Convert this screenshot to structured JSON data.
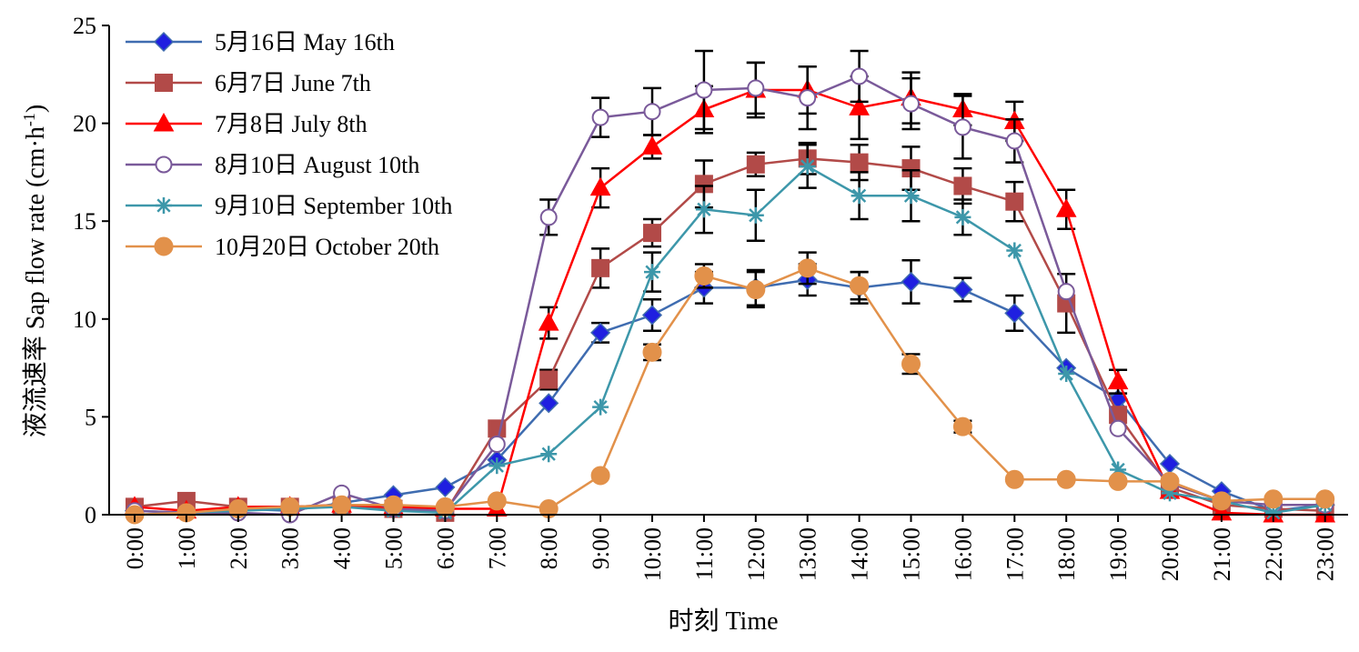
{
  "chart_data": {
    "type": "line",
    "xlabel": "时刻  Time",
    "ylabel_main": "液流速率 Sap flow rate (cm·h",
    "ylabel_sup": "-1",
    "ylabel_close": ")",
    "ylim": [
      0,
      25
    ],
    "yticks": [
      "0",
      "5",
      "10",
      "15",
      "20",
      "25"
    ],
    "categories": [
      "0:00",
      "1:00",
      "2:00",
      "3:00",
      "4:00",
      "5:00",
      "6:00",
      "7:00",
      "8:00",
      "9:00",
      "10:00",
      "11:00",
      "12:00",
      "13:00",
      "14:00",
      "15:00",
      "16:00",
      "17:00",
      "18:00",
      "19:00",
      "20:00",
      "21:00",
      "22:00",
      "23:00"
    ],
    "legend_position": "top-left",
    "series": [
      {
        "name": "5月16日 May 16th",
        "color": "#3f6cb0",
        "fill": "#1f1fe0",
        "marker": "diamond",
        "values": [
          0.2,
          0.1,
          0.3,
          0.2,
          0.6,
          1.0,
          1.4,
          2.8,
          5.7,
          9.3,
          10.2,
          11.6,
          11.6,
          12.0,
          11.6,
          11.9,
          11.5,
          10.3,
          7.5,
          5.9,
          2.6,
          1.2,
          0.2,
          0.5
        ],
        "errors": [
          0,
          0,
          0,
          0,
          0,
          0,
          0,
          0,
          0,
          0.5,
          0.8,
          0.8,
          0.9,
          0.8,
          0.8,
          1.1,
          0.6,
          0.9,
          0,
          0,
          0,
          0,
          0,
          0
        ]
      },
      {
        "name": "6月7日 June 7th",
        "color": "#b24a48",
        "fill": "#b24a48",
        "marker": "square",
        "values": [
          0.4,
          0.7,
          0.4,
          0.4,
          0.5,
          0.3,
          0.1,
          4.4,
          6.9,
          12.6,
          14.4,
          16.9,
          17.9,
          18.2,
          18.0,
          17.7,
          16.8,
          16.0,
          10.8,
          5.1,
          1.4,
          0.5,
          0.3,
          0.2
        ],
        "errors": [
          0,
          0,
          0,
          0,
          0,
          0,
          0,
          0,
          0.5,
          1.0,
          0.7,
          1.2,
          0.6,
          0.8,
          0.9,
          1.1,
          0.9,
          1.0,
          1.5,
          0,
          0,
          0,
          0,
          0
        ]
      },
      {
        "name": "7月8日 July 8th",
        "color": "#ff0000",
        "fill": "#ff0000",
        "marker": "triangle",
        "values": [
          0.4,
          0.2,
          0.4,
          0.4,
          0.5,
          0.4,
          0.3,
          0.3,
          9.8,
          16.7,
          18.8,
          20.7,
          21.7,
          21.7,
          20.8,
          21.3,
          20.7,
          20.1,
          15.6,
          6.8,
          1.2,
          0.1,
          0.0,
          0.0
        ],
        "errors": [
          0,
          0,
          0,
          0,
          0,
          0,
          0,
          0,
          0.8,
          1.0,
          0.6,
          1.2,
          1.4,
          1.2,
          1.6,
          1.3,
          0.8,
          1.0,
          1.0,
          0.6,
          0,
          0,
          0,
          0
        ]
      },
      {
        "name": "8月10日 August 10th",
        "color": "#7a5a9a",
        "fill": "none",
        "marker": "circle-open",
        "values": [
          0.2,
          0.1,
          0.1,
          0.0,
          1.1,
          0.3,
          0.2,
          3.6,
          15.2,
          20.3,
          20.6,
          21.7,
          21.8,
          21.3,
          22.4,
          21.0,
          19.8,
          19.1,
          11.4,
          4.4,
          1.6,
          0.7,
          0.5,
          0.5
        ],
        "errors": [
          0,
          0,
          0,
          0,
          0,
          0,
          0,
          0,
          0.9,
          1.0,
          1.2,
          2.0,
          1.3,
          1.6,
          1.3,
          1.3,
          1.6,
          1.1,
          0,
          0,
          0,
          0,
          0,
          0
        ]
      },
      {
        "name": "9月10日 September 10th",
        "color": "#3d97aa",
        "fill": "#3d97aa",
        "marker": "star",
        "values": [
          0.0,
          0.1,
          0.2,
          0.3,
          0.4,
          0.2,
          0.1,
          2.5,
          3.1,
          5.5,
          12.4,
          15.6,
          15.3,
          17.8,
          16.3,
          16.3,
          15.2,
          13.5,
          7.2,
          2.3,
          1.1,
          0.7,
          0.1,
          0.5
        ],
        "errors": [
          0,
          0,
          0,
          0,
          0,
          0,
          0,
          0,
          0,
          0,
          1.0,
          1.2,
          1.3,
          1.1,
          1.2,
          1.3,
          0.9,
          0,
          0,
          0,
          0,
          0,
          0,
          0
        ]
      },
      {
        "name": "10月20日 October 20th",
        "color": "#e2914a",
        "fill": "#e2914a",
        "marker": "circle",
        "values": [
          0.0,
          0.1,
          0.3,
          0.4,
          0.5,
          0.5,
          0.4,
          0.7,
          0.3,
          2.0,
          8.3,
          12.2,
          11.5,
          12.6,
          11.7,
          7.7,
          4.5,
          1.8,
          1.8,
          1.7,
          1.7,
          0.7,
          0.8,
          0.8
        ],
        "errors": [
          0,
          0,
          0,
          0,
          0,
          0,
          0,
          0,
          0,
          0,
          0.4,
          0.6,
          0.9,
          0.8,
          0.7,
          0.5,
          0.3,
          0,
          0,
          0,
          0,
          0,
          0,
          0
        ]
      }
    ]
  }
}
